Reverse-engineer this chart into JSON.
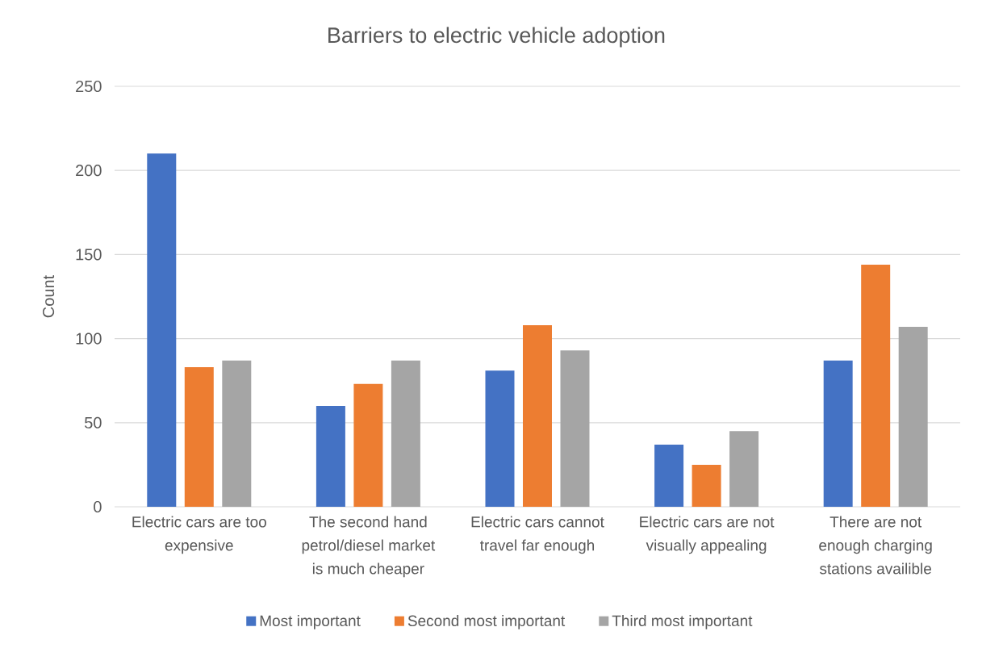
{
  "chart_data": {
    "type": "bar",
    "title": "Barriers to electric vehicle adoption",
    "ylabel": "Count",
    "categories": [
      "Electric cars are too expensive",
      "The second hand petrol/diesel market is much cheaper",
      "Electric cars cannot travel far enough",
      "Electric cars are not visually appealing",
      "There are not enough charging stations availible"
    ],
    "series": [
      {
        "name": "Most important",
        "color": "#4472c4",
        "values": [
          210,
          60,
          81,
          37,
          87
        ]
      },
      {
        "name": "Second most important",
        "color": "#ed7d31",
        "values": [
          83,
          73,
          108,
          25,
          144
        ]
      },
      {
        "name": "Third most important",
        "color": "#a5a5a5",
        "values": [
          87,
          87,
          93,
          45,
          107
        ]
      }
    ],
    "ylim": [
      0,
      250
    ],
    "yticks": [
      0,
      50,
      100,
      150,
      200,
      250
    ],
    "grid": "y",
    "legend": "bottom"
  }
}
